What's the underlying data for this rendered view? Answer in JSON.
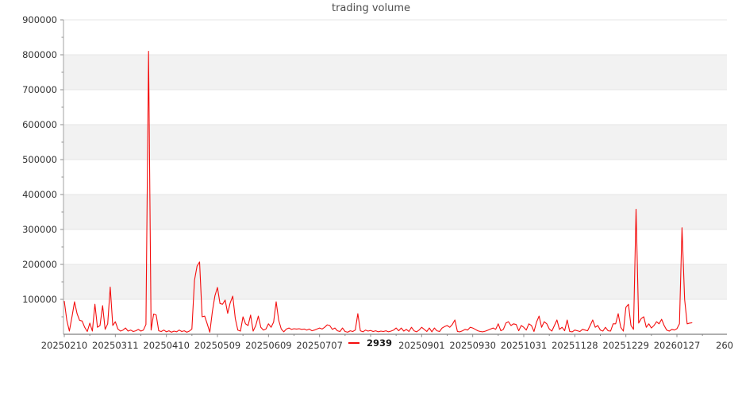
{
  "title": "trading volume",
  "legend": {
    "series_label": "2939",
    "swatch_color": "#f40d0d"
  },
  "colors": {
    "line": "#f40d0d",
    "band_fill": "#f2f2f2",
    "gridline": "#e6e6e6",
    "left_spine": "#a3a3a3",
    "bottom_spine": "#808080",
    "tick_mark": "#8c8c8c",
    "tick_label": "#333333",
    "title_text": "#4d4d4d"
  },
  "chart_data": {
    "type": "line",
    "title": "trading volume",
    "legend_position": "lower center",
    "grid": "alternating horizontal bands every 100000",
    "band_value_ranges": [
      [
        100000,
        200000
      ],
      [
        300000,
        400000
      ],
      [
        500000,
        600000
      ],
      [
        700000,
        800000
      ]
    ],
    "ylim": [
      0,
      900000
    ],
    "y_tick_step": 100000,
    "y_minor_tick_step": 50000,
    "y_tick_labels": [
      "100000",
      "200000",
      "300000",
      "400000",
      "500000",
      "600000",
      "700000",
      "800000",
      "900000"
    ],
    "x_axis_note": "one point per trading day; major tick every 20 points; label at index 120 (20250804) hidden behind legend; last label clipped to 260",
    "points_per_major_tick": 20,
    "x_tick_labels": [
      {
        "index": 0,
        "label": "20250210"
      },
      {
        "index": 20,
        "label": "20250311"
      },
      {
        "index": 40,
        "label": "20250410"
      },
      {
        "index": 60,
        "label": "20250509"
      },
      {
        "index": 80,
        "label": "20250609"
      },
      {
        "index": 100,
        "label": "20250707"
      },
      {
        "index": 140,
        "label": "20250901"
      },
      {
        "index": 160,
        "label": "20250930"
      },
      {
        "index": 180,
        "label": "20251031"
      },
      {
        "index": 200,
        "label": "20251128"
      },
      {
        "index": 220,
        "label": "20251229"
      },
      {
        "index": 240,
        "label": "20260127"
      },
      {
        "index": 260,
        "label": "260"
      }
    ],
    "series": [
      {
        "name": "2939",
        "color": "#f40d0d",
        "values": [
          95000,
          40000,
          9000,
          50000,
          93000,
          59000,
          40000,
          38000,
          20000,
          8000,
          32000,
          9000,
          86000,
          20000,
          25000,
          82000,
          14000,
          30000,
          135000,
          25000,
          36000,
          15000,
          9000,
          12000,
          18000,
          9000,
          12000,
          8000,
          10000,
          14000,
          9000,
          12000,
          28000,
          810000,
          12000,
          58000,
          55000,
          10000,
          8000,
          12000,
          7000,
          10000,
          6000,
          9000,
          7000,
          12000,
          8000,
          10000,
          6000,
          9000,
          15000,
          155000,
          195000,
          207000,
          50000,
          52000,
          30000,
          6000,
          65000,
          110000,
          134000,
          88000,
          86000,
          98000,
          60000,
          90000,
          109000,
          45000,
          12000,
          9000,
          50000,
          30000,
          25000,
          55000,
          9000,
          25000,
          52000,
          20000,
          12000,
          15000,
          30000,
          20000,
          35000,
          93000,
          40000,
          15000,
          7000,
          15000,
          18000,
          14000,
          16000,
          15000,
          16000,
          14000,
          15000,
          12000,
          15000,
          10000,
          12000,
          15000,
          18000,
          15000,
          20000,
          27000,
          25000,
          14000,
          18000,
          10000,
          8000,
          18000,
          8000,
          6000,
          10000,
          8000,
          12000,
          59000,
          10000,
          7000,
          12000,
          9000,
          11000,
          8000,
          10000,
          7000,
          9000,
          8000,
          10000,
          7000,
          9000,
          12000,
          18000,
          10000,
          18000,
          9000,
          14000,
          8000,
          20000,
          10000,
          7000,
          12000,
          20000,
          14000,
          8000,
          18000,
          7000,
          18000,
          10000,
          8000,
          18000,
          22000,
          25000,
          20000,
          28000,
          41000,
          8000,
          7000,
          10000,
          14000,
          12000,
          20000,
          18000,
          14000,
          10000,
          8000,
          7000,
          9000,
          12000,
          15000,
          18000,
          14000,
          30000,
          10000,
          14000,
          32000,
          36000,
          25000,
          30000,
          28000,
          10000,
          25000,
          20000,
          12000,
          30000,
          25000,
          8000,
          35000,
          52000,
          20000,
          36000,
          30000,
          15000,
          9000,
          25000,
          41000,
          14000,
          20000,
          10000,
          41000,
          8000,
          7000,
          12000,
          10000,
          8000,
          14000,
          12000,
          10000,
          25000,
          41000,
          20000,
          25000,
          12000,
          9000,
          20000,
          10000,
          9000,
          30000,
          30000,
          59000,
          20000,
          9000,
          77000,
          86000,
          25000,
          14000,
          358000,
          32000,
          45000,
          50000,
          20000,
          30000,
          18000,
          25000,
          36000,
          30000,
          43000,
          25000,
          12000,
          9000,
          14000,
          12000,
          16000,
          30000,
          305000,
          100000,
          30000,
          32000,
          33000
        ]
      }
    ]
  }
}
